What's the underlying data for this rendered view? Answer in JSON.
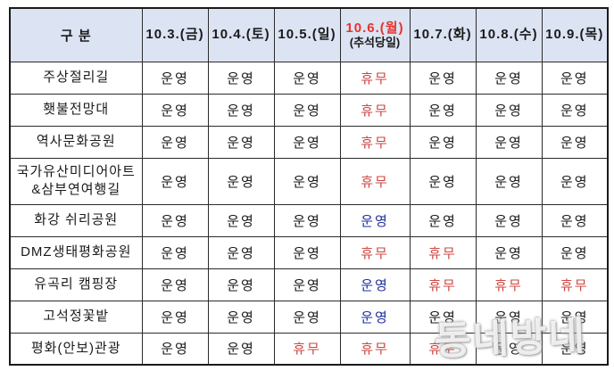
{
  "table": {
    "header": {
      "category_label": "구  분",
      "columns": [
        {
          "label": "10.3.(금)",
          "highlight": false
        },
        {
          "label": "10.4.(토)",
          "highlight": false
        },
        {
          "label": "10.5.(일)",
          "highlight": false
        },
        {
          "label": "10.6.(월)",
          "sublabel": "(추석당일)",
          "highlight": true
        },
        {
          "label": "10.7.(화)",
          "highlight": false
        },
        {
          "label": "10.8.(수)",
          "highlight": false
        },
        {
          "label": "10.9.(목)",
          "highlight": false
        }
      ]
    },
    "status_labels": {
      "open": "운영",
      "closed": "휴무",
      "open_holiday": "운영"
    },
    "rows": [
      {
        "name": "주상절리길",
        "tall": false,
        "cells": [
          "open",
          "open",
          "open",
          "closed",
          "open",
          "open",
          "open"
        ]
      },
      {
        "name": "횃불전망대",
        "tall": false,
        "cells": [
          "open",
          "open",
          "open",
          "closed",
          "open",
          "open",
          "open"
        ]
      },
      {
        "name": "역사문화공원",
        "tall": false,
        "cells": [
          "open",
          "open",
          "open",
          "closed",
          "open",
          "open",
          "open"
        ]
      },
      {
        "name": "국가유산미디어아트\n&삼부연여행길",
        "tall": true,
        "cells": [
          "open",
          "open",
          "open",
          "closed",
          "open",
          "open",
          "open"
        ]
      },
      {
        "name": "화강 쉬리공원",
        "tall": false,
        "cells": [
          "open",
          "open",
          "open",
          "open_holiday",
          "open",
          "open",
          "open"
        ]
      },
      {
        "name": "DMZ생태평화공원",
        "tall": false,
        "cells": [
          "open",
          "open",
          "open",
          "closed",
          "closed",
          "open",
          "open"
        ]
      },
      {
        "name": "유곡리 캠핑장",
        "tall": false,
        "cells": [
          "open",
          "open",
          "open",
          "open_holiday",
          "closed",
          "closed",
          "closed"
        ]
      },
      {
        "name": "고석정꽃밭",
        "tall": false,
        "cells": [
          "open",
          "open",
          "open",
          "open_holiday",
          "open",
          "open",
          "open"
        ]
      },
      {
        "name": "평화(안보)관광",
        "tall": false,
        "cells": [
          "open",
          "open",
          "closed",
          "closed",
          "closed",
          "open",
          "open"
        ]
      }
    ]
  },
  "watermark": {
    "text": "동네방네"
  },
  "colors": {
    "header_bg": "#dce3f3",
    "highlight_red": "#e6342b",
    "closed_red": "#cf453f",
    "holiday_open_blue": "#1f2f9e",
    "border": "#2b2b2b"
  }
}
